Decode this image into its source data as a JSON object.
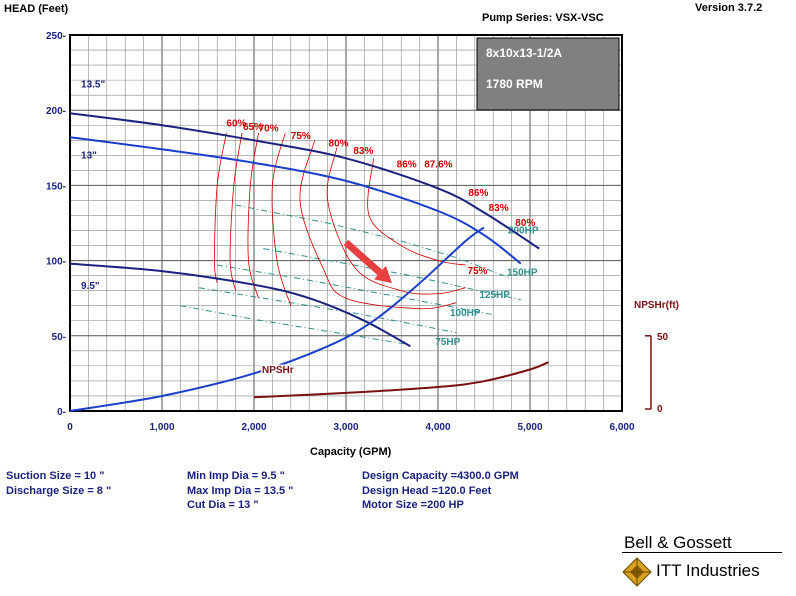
{
  "header": {
    "y_axis_title": "HEAD (Feet)",
    "pump_series": "Pump Series: VSX-VSC",
    "version": "Version 3.7.2"
  },
  "info_box": {
    "model": "8x10x13-1/2A",
    "speed": "1780 RPM",
    "color": "#808080"
  },
  "chart_data": {
    "type": "line",
    "xlabel": "Capacity (GPM)",
    "ylabel": "HEAD (Feet)",
    "xlim": [
      0,
      6000
    ],
    "ylim": [
      0,
      250
    ],
    "x_ticks": [
      "0",
      "1,000",
      "2,000",
      "3,000",
      "4,000",
      "5,000",
      "6,000"
    ],
    "y_ticks": [
      "0-",
      "50-",
      "100-",
      "150-",
      "200-",
      "250-"
    ],
    "grid": true,
    "impeller_curves": [
      {
        "name": "13.5\"",
        "color": "#1a237e",
        "points": [
          [
            0,
            198
          ],
          [
            1000,
            190
          ],
          [
            2000,
            180
          ],
          [
            3000,
            168
          ],
          [
            4000,
            148
          ],
          [
            4500,
            132
          ],
          [
            5100,
            108
          ]
        ]
      },
      {
        "name": "13\"",
        "color": "#1a3fc9",
        "points": [
          [
            0,
            182
          ],
          [
            1000,
            174
          ],
          [
            2000,
            165
          ],
          [
            3000,
            153
          ],
          [
            4000,
            133
          ],
          [
            4500,
            117
          ],
          [
            4900,
            98
          ]
        ]
      },
      {
        "name": "9.5\"",
        "color": "#1a237e",
        "points": [
          [
            0,
            98
          ],
          [
            1000,
            93
          ],
          [
            2000,
            84
          ],
          [
            2600,
            75
          ],
          [
            3200,
            60
          ],
          [
            3700,
            43
          ]
        ]
      }
    ],
    "system_curve": {
      "color": "#1a3fc9",
      "points": [
        [
          0,
          0
        ],
        [
          1000,
          10
        ],
        [
          2000,
          25
        ],
        [
          2800,
          43
        ],
        [
          3300,
          60
        ],
        [
          3800,
          85
        ],
        [
          4300,
          113
        ],
        [
          4500,
          122
        ]
      ]
    },
    "efficiency_labels": [
      "60%",
      "65%",
      "70%",
      "75%",
      "80%",
      "83%",
      "86%",
      "87.6%",
      "86%",
      "83%",
      "80%",
      "75%"
    ],
    "efficiency_color": "#d00000",
    "efficiency_contours": [
      [
        [
          1700,
          185
        ],
        [
          1600,
          150
        ],
        [
          1570,
          100
        ],
        [
          1600,
          85
        ]
      ],
      [
        [
          1870,
          185
        ],
        [
          1780,
          150
        ],
        [
          1740,
          100
        ],
        [
          1800,
          80
        ]
      ],
      [
        [
          2050,
          185
        ],
        [
          1960,
          150
        ],
        [
          1940,
          100
        ],
        [
          2050,
          75
        ]
      ],
      [
        [
          2340,
          185
        ],
        [
          2200,
          150
        ],
        [
          2250,
          100
        ],
        [
          2400,
          70
        ]
      ],
      [
        [
          2660,
          180
        ],
        [
          2500,
          140
        ],
        [
          2750,
          95
        ],
        [
          3000,
          75
        ],
        [
          3800,
          68
        ],
        [
          4200,
          72
        ]
      ],
      [
        [
          2900,
          175
        ],
        [
          2800,
          140
        ],
        [
          3100,
          95
        ],
        [
          3600,
          80
        ],
        [
          4000,
          78
        ],
        [
          4300,
          82
        ]
      ],
      [
        [
          3300,
          168
        ],
        [
          3250,
          130
        ],
        [
          3600,
          110
        ],
        [
          4000,
          100
        ],
        [
          4300,
          97
        ]
      ]
    ],
    "hp_lines": [
      {
        "name": "200HP",
        "points": [
          [
            1800,
            137
          ],
          [
            2800,
            125
          ],
          [
            3600,
            113
          ],
          [
            4200,
            102
          ],
          [
            4800,
            88
          ]
        ]
      },
      {
        "name": "150HP",
        "points": [
          [
            2100,
            108
          ],
          [
            3000,
            98
          ],
          [
            3700,
            90
          ],
          [
            4300,
            82
          ],
          [
            4900,
            74
          ]
        ]
      },
      {
        "name": "125HP",
        "points": [
          [
            1600,
            97
          ],
          [
            2500,
            88
          ],
          [
            3300,
            79
          ],
          [
            4000,
            71
          ],
          [
            4600,
            64
          ]
        ]
      },
      {
        "name": "100HP",
        "points": [
          [
            1400,
            82
          ],
          [
            2300,
            73
          ],
          [
            3100,
            65
          ],
          [
            3800,
            57
          ],
          [
            4200,
            52
          ]
        ]
      },
      {
        "name": "75HP",
        "points": [
          [
            1200,
            70
          ],
          [
            2000,
            61
          ],
          [
            2900,
            52
          ],
          [
            3700,
            44
          ]
        ]
      }
    ],
    "hp_color": "#2f8f8f",
    "npsh_axis": {
      "label": "NPSHr(ft)",
      "ticks": [
        "50",
        "0"
      ],
      "ylim": [
        0,
        50
      ],
      "color": "#7b1010"
    },
    "npsh_curve": {
      "name": "NPSHr",
      "points": [
        [
          2000,
          8
        ],
        [
          3000,
          11
        ],
        [
          4000,
          15
        ],
        [
          4500,
          19
        ],
        [
          5000,
          27
        ],
        [
          5200,
          32
        ]
      ]
    },
    "arrow": {
      "from": [
        3000,
        112
      ],
      "to": [
        3500,
        85
      ],
      "color": "#e84040"
    }
  },
  "footer": {
    "col1": [
      "Suction Size = 10 \"",
      "Discharge Size = 8 \""
    ],
    "col2": [
      "Min Imp Dia = 9.5 \"",
      "Max Imp Dia = 13.5 \"",
      "Cut Dia = 13 \""
    ],
    "col3": [
      "Design Capacity =4300.0 GPM",
      "Design Head =120.0 Feet",
      "Motor Size =200 HP"
    ]
  },
  "logo": {
    "top": "Bell & Gossett",
    "bottom": "ITT Industries"
  }
}
